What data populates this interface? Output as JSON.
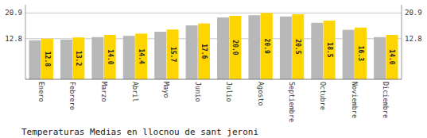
{
  "chart_data": {
    "type": "bar",
    "title": "Temperaturas Medias en llocnou de sant jeroni",
    "categories": [
      "Enero",
      "Febrero",
      "Marzo",
      "Abril",
      "Mayo",
      "Junio",
      "Julio",
      "Agosto",
      "Septiembre",
      "Octubre",
      "Noviembre",
      "Diciembre"
    ],
    "series": [
      {
        "color": "#B8B8B8",
        "values": [
          12.3,
          12.5,
          13.3,
          13.7,
          15.0,
          17.0,
          19.5,
          20.2,
          19.8,
          17.8,
          15.6,
          13.3
        ]
      },
      {
        "color": "#FFD500",
        "values": [
          12.8,
          13.2,
          14.0,
          14.4,
          15.7,
          17.6,
          20.0,
          20.9,
          20.5,
          18.5,
          16.3,
          14.0
        ],
        "value_labels": [
          "12.8",
          "13.2",
          "14.0",
          "14.4",
          "15.7",
          "17.6",
          "20.0",
          "20.9",
          "20.5",
          "18.5",
          "16.3",
          "14.0"
        ],
        "data_labels": true
      }
    ],
    "ylim": [
      0,
      23.5
    ],
    "yticks": [
      12.8,
      20.9
    ],
    "y2lim": [
      0,
      23.5
    ],
    "y2ticks": [
      12.8,
      20.9
    ],
    "grid": true
  }
}
